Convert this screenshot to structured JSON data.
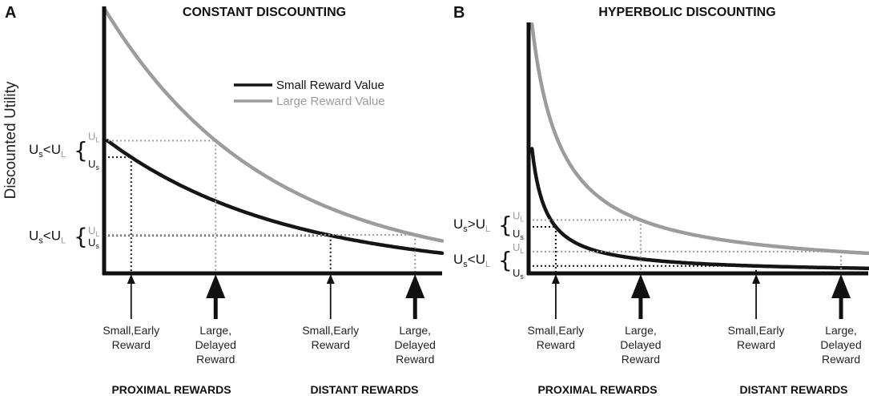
{
  "colors": {
    "small": "#151515",
    "large": "#9c9c9c",
    "axis": "#111111"
  },
  "ylabel": "Discounted Utility",
  "legend": {
    "small": "Small Reward Value",
    "large": "Large Reward Value"
  },
  "section_labels": {
    "proximal": "PROXIMAL REWARDS",
    "distant": "DISTANT REWARDS"
  },
  "reward_labels": {
    "small_early": [
      "Small,Early",
      "Reward"
    ],
    "large_delayed": [
      "Large,",
      "Delayed",
      "Reward"
    ]
  },
  "u_labels": {
    "U": "U",
    "s": "s",
    "L": "L",
    "lt": "<",
    "gt": ">"
  },
  "panels": [
    {
      "letter": "A",
      "title": "CONSTANT DISCOUNTING"
    },
    {
      "letter": "B",
      "title": "HYPERBOLIC DISCOUNTING"
    }
  ],
  "chart_data": [
    {
      "type": "line",
      "title": "CONSTANT DISCOUNTING",
      "ylabel": "Discounted Utility",
      "x_range": [
        0,
        10
      ],
      "y_range": [
        0,
        1
      ],
      "series": [
        {
          "name": "Small Reward Value",
          "color": "#151515",
          "model": "exponential",
          "start": 0.5,
          "rate": 0.19,
          "x_start": 0.1
        },
        {
          "name": "Large Reward Value",
          "color": "#9c9c9c",
          "model": "exponential",
          "start": 1.0,
          "rate": 0.21,
          "x_start": 0.0
        }
      ],
      "reward_times": [
        {
          "x": 0.8,
          "size": "small",
          "label": "Small,Early Reward"
        },
        {
          "x": 3.3,
          "size": "large",
          "label": "Large, Delayed Reward"
        },
        {
          "x": 6.7,
          "size": "small",
          "label": "Small,Early Reward"
        },
        {
          "x": 9.2,
          "size": "large",
          "label": "Large, Delayed Reward"
        }
      ],
      "comparisons": [
        {
          "group": "proximal",
          "relation": "Us<UL",
          "small_at": 0.8,
          "large_at": 3.3
        },
        {
          "group": "distant",
          "relation": "Us<UL",
          "small_at": 6.7,
          "large_at": 9.2
        }
      ]
    },
    {
      "type": "line",
      "title": "HYPERBOLIC DISCOUNTING",
      "ylabel": "Discounted Utility",
      "x_range": [
        0,
        10
      ],
      "y_range": [
        0,
        1
      ],
      "series": [
        {
          "name": "Small Reward Value",
          "color": "#151515",
          "model": "hyperbolic",
          "start": 0.5,
          "k": 2.4,
          "x_start": 0.1
        },
        {
          "name": "Large Reward Value",
          "color": "#9c9c9c",
          "model": "hyperbolic",
          "start": 1.0,
          "k": 1.15,
          "x_start": 0.1
        }
      ],
      "reward_times": [
        {
          "x": 0.8,
          "size": "small",
          "label": "Small,Early Reward"
        },
        {
          "x": 3.3,
          "size": "large",
          "label": "Large, Delayed Reward"
        },
        {
          "x": 6.7,
          "size": "small",
          "label": "Small,Early Reward"
        },
        {
          "x": 9.2,
          "size": "large",
          "label": "Large, Delayed Reward"
        }
      ],
      "comparisons": [
        {
          "group": "proximal",
          "relation": "Us>UL",
          "small_at": 0.8,
          "large_at": 3.3
        },
        {
          "group": "distant",
          "relation": "Us<UL",
          "small_at": 6.7,
          "large_at": 9.2
        }
      ]
    }
  ]
}
